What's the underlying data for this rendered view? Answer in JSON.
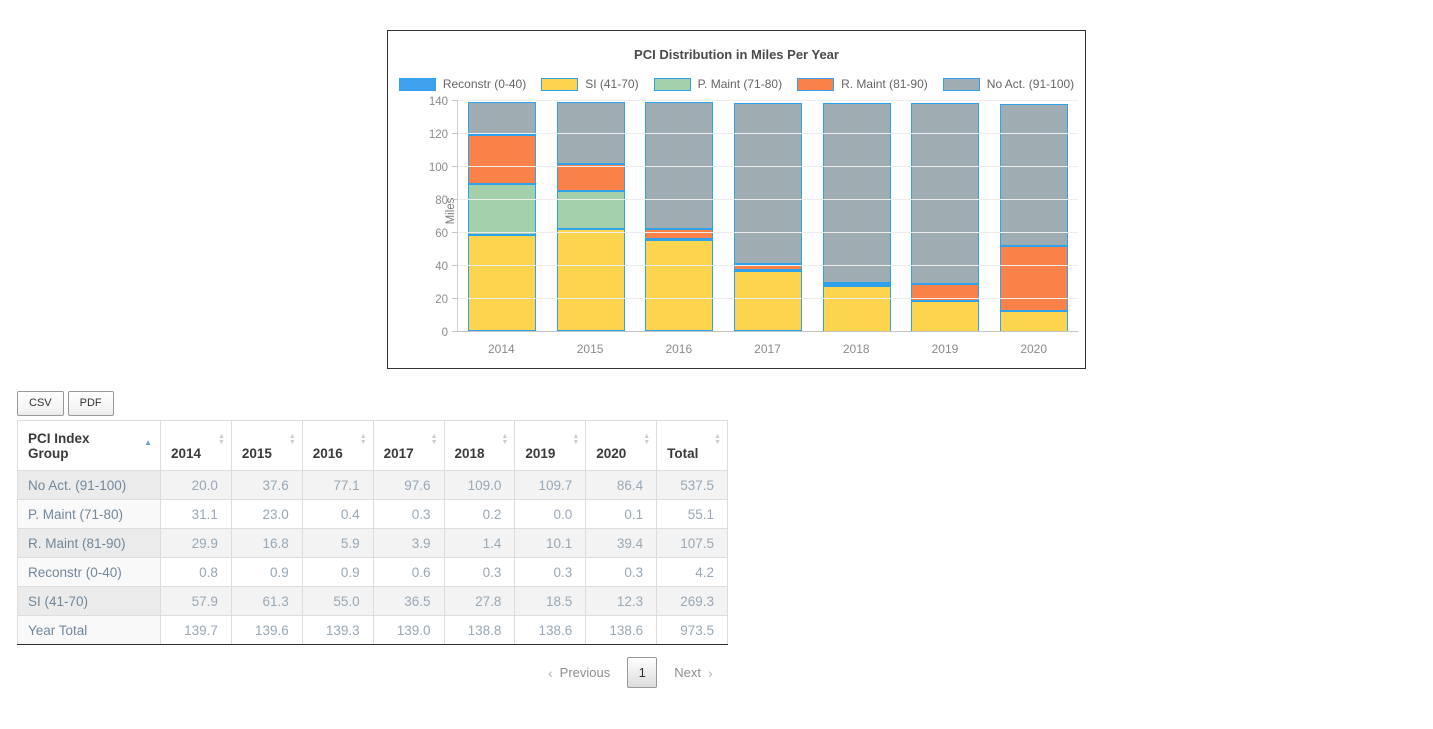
{
  "chart_data": {
    "type": "bar",
    "stacked": true,
    "title": "PCI Distribution in Miles Per Year",
    "xlabel": "",
    "ylabel": "Miles",
    "ylim": [
      0,
      140
    ],
    "yticks": [
      0,
      20,
      40,
      60,
      80,
      100,
      120,
      140
    ],
    "grid": true,
    "legend_position": "top",
    "bar_border_color": "#2ea3ec",
    "categories": [
      "2014",
      "2015",
      "2016",
      "2017",
      "2018",
      "2019",
      "2020"
    ],
    "series": [
      {
        "name": "Reconstr (0-40)",
        "color": "#3fa0ee",
        "values": [
          0.8,
          0.9,
          0.9,
          0.6,
          0.3,
          0.3,
          0.3
        ]
      },
      {
        "name": "SI (41-70)",
        "color": "#fcd44d",
        "values": [
          57.9,
          61.3,
          55.0,
          36.5,
          27.8,
          18.5,
          12.3
        ]
      },
      {
        "name": "P. Maint (71-80)",
        "color": "#a4cfab",
        "values": [
          31.1,
          23.0,
          0.4,
          0.3,
          0.2,
          0.0,
          0.1
        ]
      },
      {
        "name": "R. Maint (81-90)",
        "color": "#fa8148",
        "values": [
          29.9,
          16.8,
          5.9,
          3.9,
          1.4,
          10.1,
          39.4
        ]
      },
      {
        "name": "No Act. (91-100)",
        "color": "#9fadb3",
        "values": [
          20.0,
          37.6,
          77.1,
          97.6,
          109.0,
          109.7,
          86.4
        ]
      }
    ]
  },
  "toolbar": {
    "csv_label": "CSV",
    "pdf_label": "PDF"
  },
  "table": {
    "columns": [
      {
        "label": "PCI Index Group",
        "sort": "asc"
      },
      {
        "label": "2014",
        "sort": "both"
      },
      {
        "label": "2015",
        "sort": "both"
      },
      {
        "label": "2016",
        "sort": "both"
      },
      {
        "label": "2017",
        "sort": "both"
      },
      {
        "label": "2018",
        "sort": "both"
      },
      {
        "label": "2019",
        "sort": "both"
      },
      {
        "label": "2020",
        "sort": "both"
      },
      {
        "label": "Total",
        "sort": "both"
      }
    ],
    "rows": [
      {
        "label": "No Act. (91-100)",
        "values": [
          "20.0",
          "37.6",
          "77.1",
          "97.6",
          "109.0",
          "109.7",
          "86.4",
          "537.5"
        ]
      },
      {
        "label": "P. Maint (71-80)",
        "values": [
          "31.1",
          "23.0",
          "0.4",
          "0.3",
          "0.2",
          "0.0",
          "0.1",
          "55.1"
        ]
      },
      {
        "label": "R. Maint (81-90)",
        "values": [
          "29.9",
          "16.8",
          "5.9",
          "3.9",
          "1.4",
          "10.1",
          "39.4",
          "107.5"
        ]
      },
      {
        "label": "Reconstr (0-40)",
        "values": [
          "0.8",
          "0.9",
          "0.9",
          "0.6",
          "0.3",
          "0.3",
          "0.3",
          "4.2"
        ]
      },
      {
        "label": "SI (41-70)",
        "values": [
          "57.9",
          "61.3",
          "55.0",
          "36.5",
          "27.8",
          "18.5",
          "12.3",
          "269.3"
        ]
      },
      {
        "label": "Year Total",
        "values": [
          "139.7",
          "139.6",
          "139.3",
          "139.0",
          "138.8",
          "138.6",
          "138.6",
          "973.5"
        ]
      }
    ]
  },
  "pagination": {
    "prev_icon": "‹",
    "previous_label": "Previous",
    "current_page": "1",
    "next_label": "Next",
    "next_icon": "›"
  }
}
